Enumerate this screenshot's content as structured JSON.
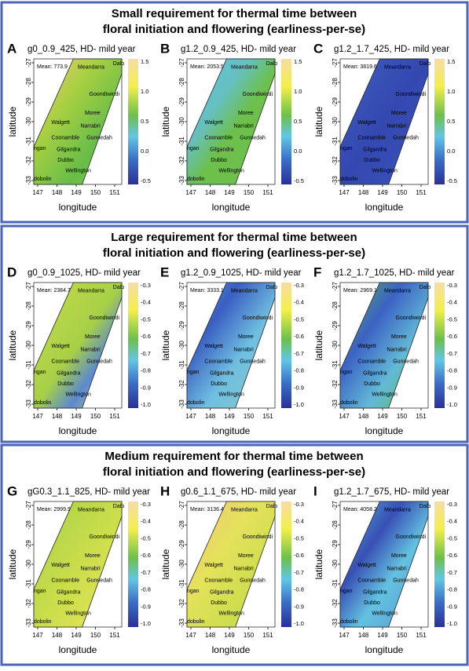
{
  "sections": [
    {
      "title": [
        "Small requirement for thermal time between",
        "floral initiation and flowering (earliness-per-se)"
      ],
      "colorbar_ticks": [
        "1.5",
        "1.0",
        "0.5",
        "0.0",
        "-0.5"
      ],
      "panels": [
        {
          "letter": "A",
          "title": "g0_0.9_425, HD- mild year",
          "mean": "Mean: 773.9"
        },
        {
          "letter": "B",
          "title": "g1.2_0.9_425, HD- mild year",
          "mean": "Mean: 2053.5"
        },
        {
          "letter": "C",
          "title": "g1.2_1.7_425, HD- mild year",
          "mean": "Mean: 3819.6"
        }
      ]
    },
    {
      "title": [
        "Large requirement for thermal time between",
        "floral initiation and flowering (earliness-per-se)"
      ],
      "colorbar_ticks": [
        "-0.3",
        "-0.4",
        "-0.5",
        "-0.6",
        "-0.7",
        "-0.8",
        "-0.9",
        "-1.0"
      ],
      "panels": [
        {
          "letter": "D",
          "title": "g0_0.9_1025, HD- mild year",
          "mean": "Mean: 2384.7"
        },
        {
          "letter": "E",
          "title": "g1.2_0.9_1025, HD- mild year",
          "mean": "Mean: 3333.1"
        },
        {
          "letter": "F",
          "title": "g1.2_1.7_1025, HD- mild year",
          "mean": "Mean: 2969.1"
        }
      ]
    },
    {
      "title": [
        "Medium requirement for thermal time between",
        "floral initiation and flowering (earliness-per-se)"
      ],
      "colorbar_ticks": [
        "-0.3",
        "-0.4",
        "-0.5",
        "-0.6",
        "-0.7",
        "-0.8",
        "-0.9",
        "-1.0"
      ],
      "panels": [
        {
          "letter": "G",
          "title": "gG0.3_1.1_825, HD- mild year",
          "mean": "Mean: 2999.9"
        },
        {
          "letter": "H",
          "title": "g0.6_1.1_675, HD- mild year",
          "mean": "Mean: 3136.4"
        },
        {
          "letter": "I",
          "title": "g1.2_1.7_675, HD- mild year",
          "mean": "Mean: 4058.2"
        }
      ]
    }
  ],
  "y_ticks": [
    "-27",
    "-28",
    "-29",
    "-30",
    "-31",
    "-32",
    "-33"
  ],
  "x_ticks": [
    "147",
    "148",
    "149",
    "150",
    "151"
  ],
  "y_label": "latitude",
  "x_label": "longitude",
  "towns": [
    "Meandarra",
    "Dalb",
    "Goondiwindi",
    "Moree",
    "Walgett",
    "Narrabri",
    "Coonamble",
    "Gunnedah",
    "ngan",
    "Gilgandra",
    "Dubbo",
    "Wellington",
    "dobolin"
  ]
}
